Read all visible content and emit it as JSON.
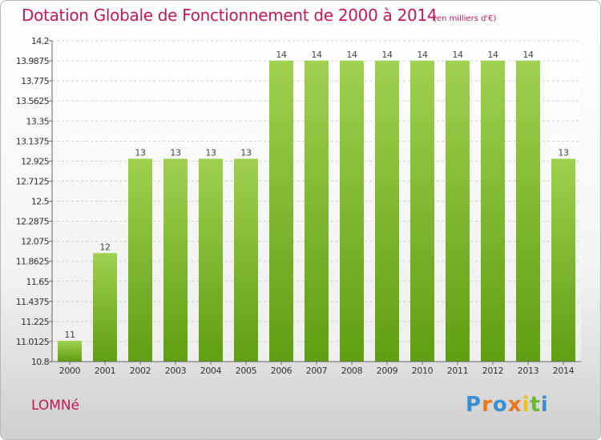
{
  "chart_data": {
    "type": "bar",
    "title": "Dotation Globale de Fonctionnement de 2000 à 2014",
    "unit_note": "(en milliers d'€)",
    "categories": [
      "2000",
      "2001",
      "2002",
      "2003",
      "2004",
      "2005",
      "2006",
      "2007",
      "2008",
      "2009",
      "2010",
      "2011",
      "2012",
      "2013",
      "2014"
    ],
    "values": [
      11,
      12,
      13,
      13,
      13,
      13,
      14,
      14,
      14,
      14,
      14,
      14,
      14,
      14,
      13
    ],
    "value_labels": [
      "11",
      "12",
      "13",
      "13",
      "13",
      "13",
      "14",
      "14",
      "14",
      "14",
      "14",
      "14",
      "14",
      "14",
      "13"
    ],
    "bar_values": [
      11.02,
      11.95,
      12.95,
      12.95,
      12.95,
      12.95,
      13.99,
      13.99,
      13.99,
      13.99,
      13.99,
      13.99,
      13.99,
      13.99,
      12.95
    ],
    "yticks": [
      10.8,
      11.0125,
      11.225,
      11.4375,
      11.65,
      11.8625,
      12.075,
      12.2875,
      12.5,
      12.7125,
      12.925,
      13.1375,
      13.35,
      13.5625,
      13.775,
      13.9875,
      14.2
    ],
    "ytick_labels": [
      "10.8",
      "11.0125",
      "11.225",
      "11.4375",
      "11.65",
      "11.8625",
      "12.075",
      "12.2875",
      "12.5",
      "12.7125",
      "12.925",
      "13.1375",
      "13.35",
      "13.5625",
      "13.775",
      "13.9875",
      "14.2"
    ],
    "ylim": [
      10.8,
      14.2
    ],
    "xlabel": "",
    "ylabel": "",
    "grid": true,
    "bar_color_top": "#a0d050",
    "bar_color_bottom": "#5f9e12"
  },
  "footer": {
    "commune": "LOMNé",
    "brand": "Proxiti",
    "brand_colors": [
      "#3a8fd0",
      "#e8781a",
      "#3a8fd0",
      "#e8781a",
      "#f2c21a",
      "#6ab82e",
      "#3a8fd0"
    ]
  }
}
